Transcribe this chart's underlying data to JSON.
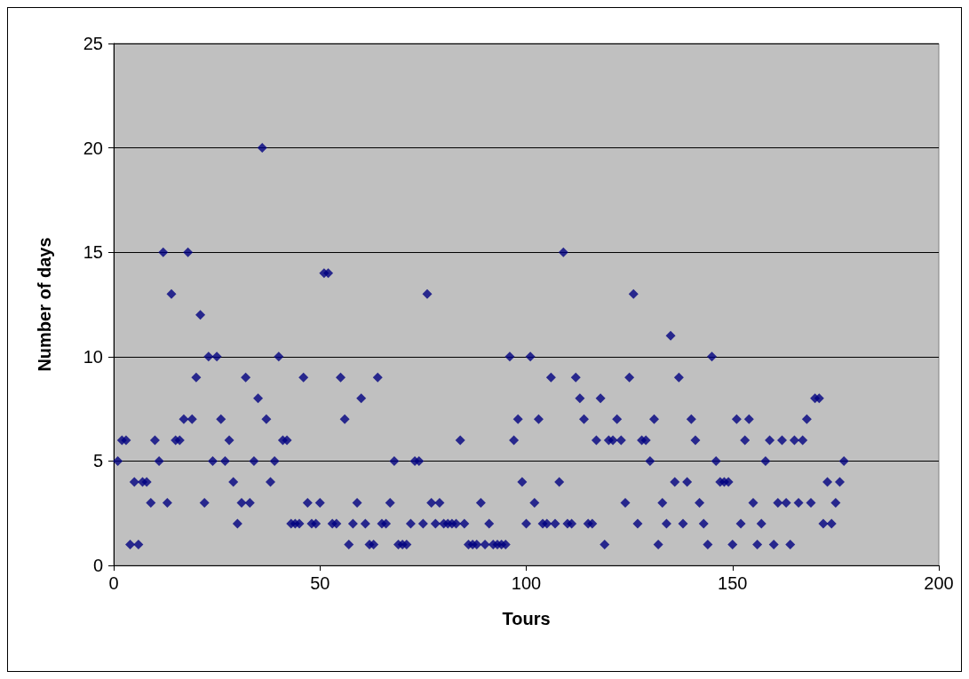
{
  "chart_data": {
    "type": "scatter",
    "xlabel": "Tours",
    "ylabel": "Number of days",
    "x": [
      1,
      2,
      3,
      4,
      5,
      6,
      7,
      8,
      9,
      10,
      11,
      12,
      13,
      14,
      15,
      16,
      17,
      18,
      19,
      20,
      21,
      22,
      23,
      24,
      25,
      26,
      27,
      28,
      29,
      30,
      31,
      32,
      33,
      34,
      35,
      36,
      37,
      38,
      39,
      40,
      41,
      42,
      43,
      44,
      45,
      46,
      47,
      48,
      49,
      50,
      51,
      52,
      53,
      54,
      55,
      56,
      57,
      58,
      59,
      60,
      61,
      62,
      63,
      64,
      65,
      66,
      67,
      68,
      69,
      70,
      71,
      72,
      73,
      74,
      75,
      76,
      77,
      78,
      79,
      80,
      81,
      82,
      83,
      84,
      85,
      86,
      87,
      88,
      89,
      90,
      91,
      92,
      93,
      94,
      95,
      96,
      97,
      98,
      99,
      100,
      101,
      102,
      103,
      104,
      105,
      106,
      107,
      108,
      109,
      110,
      111,
      112,
      113,
      114,
      115,
      116,
      117,
      118,
      119,
      120,
      121,
      122,
      123,
      124,
      125,
      126,
      127,
      128,
      129,
      130,
      131,
      132,
      133,
      134,
      135,
      136,
      137,
      138,
      139,
      140,
      141,
      142,
      143,
      144,
      145,
      146,
      147,
      148,
      149,
      150,
      151,
      152,
      153,
      154,
      155,
      156,
      157,
      158,
      159,
      160,
      161,
      162,
      163,
      164,
      165,
      166,
      167,
      168,
      169,
      170,
      171,
      172,
      173,
      174,
      175,
      176,
      177
    ],
    "values": [
      5,
      6,
      6,
      1,
      4,
      1,
      4,
      4,
      3,
      6,
      5,
      15,
      3,
      13,
      6,
      6,
      7,
      15,
      7,
      9,
      12,
      3,
      10,
      5,
      10,
      7,
      5,
      6,
      4,
      2,
      3,
      9,
      3,
      5,
      8,
      20,
      7,
      4,
      5,
      10,
      6,
      6,
      2,
      2,
      2,
      9,
      3,
      2,
      2,
      3,
      14,
      14,
      2,
      2,
      9,
      7,
      1,
      2,
      3,
      8,
      2,
      1,
      1,
      9,
      2,
      2,
      3,
      5,
      1,
      1,
      1,
      2,
      5,
      5,
      2,
      13,
      3,
      2,
      3,
      2,
      2,
      2,
      2,
      6,
      2,
      1,
      1,
      1,
      3,
      1,
      2,
      1,
      1,
      1,
      1,
      10,
      6,
      7,
      4,
      2,
      10,
      3,
      7,
      2,
      2,
      9,
      2,
      4,
      15,
      2,
      2,
      9,
      8,
      7,
      2,
      2,
      6,
      8,
      1,
      6,
      6,
      7,
      6,
      3,
      9,
      13,
      2,
      6,
      6,
      5,
      7,
      1,
      3,
      2,
      11,
      4,
      9,
      2,
      4,
      7,
      6,
      3,
      2,
      1,
      10,
      5,
      4,
      4,
      4,
      1,
      7,
      2,
      6,
      7,
      3,
      1,
      2,
      5,
      6,
      1,
      3,
      6,
      3,
      1,
      6,
      3,
      6,
      7,
      3,
      8,
      8,
      2,
      4,
      2,
      3,
      4,
      5
    ],
    "color": "#000080",
    "marker": "diamond",
    "grid": "y",
    "xlim": [
      0,
      200
    ],
    "xticks": [
      0,
      50,
      100,
      150,
      200
    ],
    "ylim": [
      0,
      25
    ],
    "yticks": [
      0,
      5,
      10,
      15,
      20,
      25
    ]
  }
}
